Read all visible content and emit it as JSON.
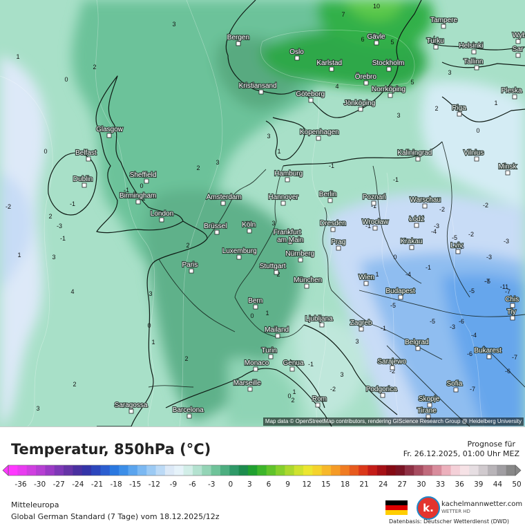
{
  "map": {
    "attribution": "Map data © OpenStreetMap contributors, rendering GIScience Research Group @ Heidelberg University",
    "cities": [
      {
        "name": "Bergen"
      },
      {
        "name": "Oslo"
      },
      {
        "name": "Karlstad"
      },
      {
        "name": "Stockholm"
      },
      {
        "name": "Gävle"
      },
      {
        "name": "Turku"
      },
      {
        "name": "Helsinki"
      },
      {
        "name": "Tampere"
      },
      {
        "name": "Wyb"
      },
      {
        "name": "Sar"
      },
      {
        "name": "Tallinn"
      },
      {
        "name": "Pleska"
      },
      {
        "name": "Riga"
      },
      {
        "name": "Örebro"
      },
      {
        "name": "Norrköping"
      },
      {
        "name": "Kristiansand"
      },
      {
        "name": "Göteborg"
      },
      {
        "name": "Jönköping"
      },
      {
        "name": "Kopenhagen"
      },
      {
        "name": "Kaliningrad"
      },
      {
        "name": "Vilnius"
      },
      {
        "name": "Minsk"
      },
      {
        "name": "Glasgow"
      },
      {
        "name": "Belfast"
      },
      {
        "name": "Sheffield"
      },
      {
        "name": "Dublin"
      },
      {
        "name": "Birmingham"
      },
      {
        "name": "London"
      },
      {
        "name": "Hamburg"
      },
      {
        "name": "Amsterdam"
      },
      {
        "name": "Hannover"
      },
      {
        "name": "Berlin"
      },
      {
        "name": "Poznań"
      },
      {
        "name": "Warschau"
      },
      {
        "name": "Brüssel"
      },
      {
        "name": "Köln"
      },
      {
        "name": "Dresden"
      },
      {
        "name": "Wrocław"
      },
      {
        "name": "Łódź"
      },
      {
        "name": "Frankfurt am Main"
      },
      {
        "name": "Prag"
      },
      {
        "name": "Krakau"
      },
      {
        "name": "Lviv"
      },
      {
        "name": "Luxemburg"
      },
      {
        "name": "Nürnberg"
      },
      {
        "name": "Paris"
      },
      {
        "name": "Stuttgart"
      },
      {
        "name": "München"
      },
      {
        "name": "Wien"
      },
      {
        "name": "Budapest"
      },
      {
        "name": "Bern"
      },
      {
        "name": "Chis"
      },
      {
        "name": "Ljubljana"
      },
      {
        "name": "Zagreb"
      },
      {
        "name": "Mailand"
      },
      {
        "name": "Tiy"
      },
      {
        "name": "Belgrad"
      },
      {
        "name": "Bukarest"
      },
      {
        "name": "Turin"
      },
      {
        "name": "Monaco"
      },
      {
        "name": "Genua"
      },
      {
        "name": "Sarajewo"
      },
      {
        "name": "Marseille"
      },
      {
        "name": "Podgorica"
      },
      {
        "name": "Sofia"
      },
      {
        "name": "Skopje"
      },
      {
        "name": "Saragossa"
      },
      {
        "name": "Rom"
      },
      {
        "name": "Tirane"
      },
      {
        "name": "Barcelona"
      }
    ],
    "contour_labels": [
      "10",
      "7",
      "6",
      "5",
      "3",
      "4",
      "3",
      "1",
      "2",
      "0",
      "0",
      "1",
      "2",
      "3",
      "4",
      "5",
      "4",
      "3",
      "2",
      "1",
      "0",
      "3",
      "3",
      "2",
      "1",
      "-1",
      "-2",
      "-3",
      "-1",
      "-1",
      "0",
      "1",
      "2",
      "3",
      "3",
      "2",
      "1",
      "0",
      "-1",
      "-2",
      "-3",
      "-4",
      "-5",
      "-6",
      "-1",
      "-1",
      "-2",
      "-3",
      "-7",
      "-11",
      "-4",
      "-5",
      "-6",
      "-5",
      "-6",
      "-7",
      "-6",
      "-7",
      "-5",
      "-2",
      "-1",
      "3",
      "2",
      "1",
      "0",
      "-1",
      "-2",
      "1",
      "0",
      "2",
      "3",
      "2",
      "3",
      "1",
      "0",
      "-1",
      "-2",
      "-3",
      "-3",
      "-4",
      "-5",
      "-7",
      "-1"
    ]
  },
  "footer": {
    "title": "Temperatur, 850hPa (°C)",
    "forecast_label": "Prognose für",
    "forecast_date": "Fr. 26.12.2025, 01:00 Uhr MEZ",
    "region": "Mitteleuropa",
    "model_line": "Global German Standard (7 Tage) vom  18.12.2025/12z",
    "brand": "kachelmannwetter.com",
    "brand_sub": "WETTER HD",
    "logo_letter": "k.",
    "source": "Datenbasis: Deutscher Wetterdienst (DWD)",
    "scale_ticks": [
      "-36",
      "-30",
      "-27",
      "-24",
      "-21",
      "-18",
      "-15",
      "-12",
      "-9",
      "-6",
      "-3",
      "0",
      "3",
      "6",
      "9",
      "12",
      "15",
      "18",
      "21",
      "24",
      "27",
      "30",
      "33",
      "36",
      "39",
      "44",
      "50"
    ],
    "scale_colors": [
      "#ff38ff",
      "#e83cf0",
      "#cf3fe0",
      "#b63fd3",
      "#9b3ac5",
      "#7e38b6",
      "#6534a6",
      "#4a30a0",
      "#3434a8",
      "#2c46bc",
      "#2b5ed0",
      "#2a78e0",
      "#3c8ee8",
      "#5aa4ee",
      "#7bb8f2",
      "#9ccaf4",
      "#bcdaf6",
      "#dce9f7",
      "#e6f3fa",
      "#d2eee8",
      "#b4e2d0",
      "#94d4b6",
      "#6fc39a",
      "#4dae80",
      "#2f9968",
      "#1d8c4e",
      "#20a030",
      "#3db52a",
      "#61c32a",
      "#86cf2c",
      "#acd82e",
      "#cfe22f",
      "#ece630",
      "#f5d32c",
      "#f7b82a",
      "#f59b26",
      "#f07c22",
      "#e75a1e",
      "#db381a",
      "#c41d18",
      "#a51016",
      "#850a14",
      "#7a1424",
      "#8e3044",
      "#a74c60",
      "#c06a7c",
      "#d88c9c",
      "#ecb0bc",
      "#f4d0d8",
      "#f6e2e6",
      "#e6dee2",
      "#d0cace",
      "#b8b4b8",
      "#a09ea2",
      "#888888"
    ]
  }
}
